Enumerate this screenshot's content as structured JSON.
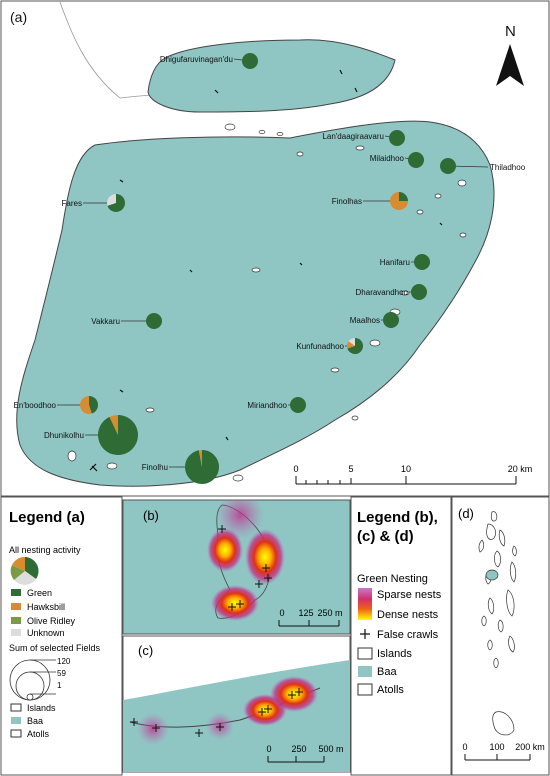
{
  "colors": {
    "sea": "#ffffff",
    "baa": "#8fc6c3",
    "green": "#2f6b35",
    "hawksbill": "#d98b30",
    "olive_ridley": "#7a9a45",
    "unknown": "#dddddd",
    "frame": "#555555"
  },
  "panel_a": {
    "label": "(a)",
    "north_label": "N",
    "scale_ticks": [
      "0",
      "5",
      "10",
      "20 km"
    ],
    "sites": [
      {
        "name": "Dhigufaruvinagan'du",
        "green": 1.0,
        "hawksbill": 0,
        "olive": 0,
        "unknown": 0
      },
      {
        "name": "Lan'daagiraavaru",
        "green": 1.0,
        "hawksbill": 0,
        "olive": 0,
        "unknown": 0
      },
      {
        "name": "Milaidhoo",
        "green": 1.0,
        "hawksbill": 0,
        "olive": 0,
        "unknown": 0
      },
      {
        "name": "Thiladhoo",
        "green": 1.0,
        "hawksbill": 0,
        "olive": 0,
        "unknown": 0
      },
      {
        "name": "Fares",
        "green": 0.7,
        "hawksbill": 0,
        "olive": 0,
        "unknown": 0.3
      },
      {
        "name": "Finolhas",
        "green": 0.25,
        "hawksbill": 0.75,
        "olive": 0,
        "unknown": 0
      },
      {
        "name": "Hanifaru",
        "green": 1.0,
        "hawksbill": 0,
        "olive": 0,
        "unknown": 0
      },
      {
        "name": "Dharavandhoo",
        "green": 1.0,
        "hawksbill": 0,
        "olive": 0,
        "unknown": 0
      },
      {
        "name": "Vakkaru",
        "green": 1.0,
        "hawksbill": 0,
        "olive": 0,
        "unknown": 0
      },
      {
        "name": "Maalhos",
        "green": 1.0,
        "hawksbill": 0,
        "olive": 0,
        "unknown": 0
      },
      {
        "name": "Kunfunadhoo",
        "green": 0.7,
        "hawksbill": 0.15,
        "olive": 0,
        "unknown": 0.15
      },
      {
        "name": "En'boodhoo",
        "green": 0.45,
        "hawksbill": 0.55,
        "olive": 0,
        "unknown": 0
      },
      {
        "name": "Miriandhoo",
        "green": 1.0,
        "hawksbill": 0,
        "olive": 0,
        "unknown": 0
      },
      {
        "name": "Dhunikolhu",
        "green": 0.93,
        "hawksbill": 0.07,
        "olive": 0,
        "unknown": 0
      },
      {
        "name": "Finolhu",
        "green": 0.97,
        "hawksbill": 0.03,
        "olive": 0,
        "unknown": 0
      }
    ]
  },
  "legend_a": {
    "title": "Legend (a)",
    "subtitle": "All nesting activity",
    "categories": [
      {
        "label": "Green",
        "key": "green"
      },
      {
        "label": "Hawksbill",
        "key": "hawksbill"
      },
      {
        "label": "Olive Ridley",
        "key": "olive_ridley"
      },
      {
        "label": "Unknown",
        "key": "unknown"
      }
    ],
    "size_title": "Sum of selected Fields",
    "size_values": [
      "120",
      "59",
      "1"
    ],
    "layers": [
      "Islands",
      "Baa",
      "Atolls"
    ]
  },
  "panel_b": {
    "label": "(b)",
    "scale_ticks": [
      "0",
      "125",
      "250 m"
    ]
  },
  "panel_c": {
    "label": "(c)",
    "scale_ticks": [
      "0",
      "250",
      "500 m"
    ]
  },
  "panel_d": {
    "label": "(d)",
    "scale_ticks": [
      "0",
      "100",
      "200 km"
    ]
  },
  "legend_bcd": {
    "title_line1": "Legend (b),",
    "title_line2": "(c) & (d)",
    "heading": "Green Nesting",
    "sparse": "Sparse nests",
    "dense": "Dense nests",
    "false_crawls": "False crawls",
    "layers": [
      "Islands",
      "Baa",
      "Atolls"
    ]
  }
}
